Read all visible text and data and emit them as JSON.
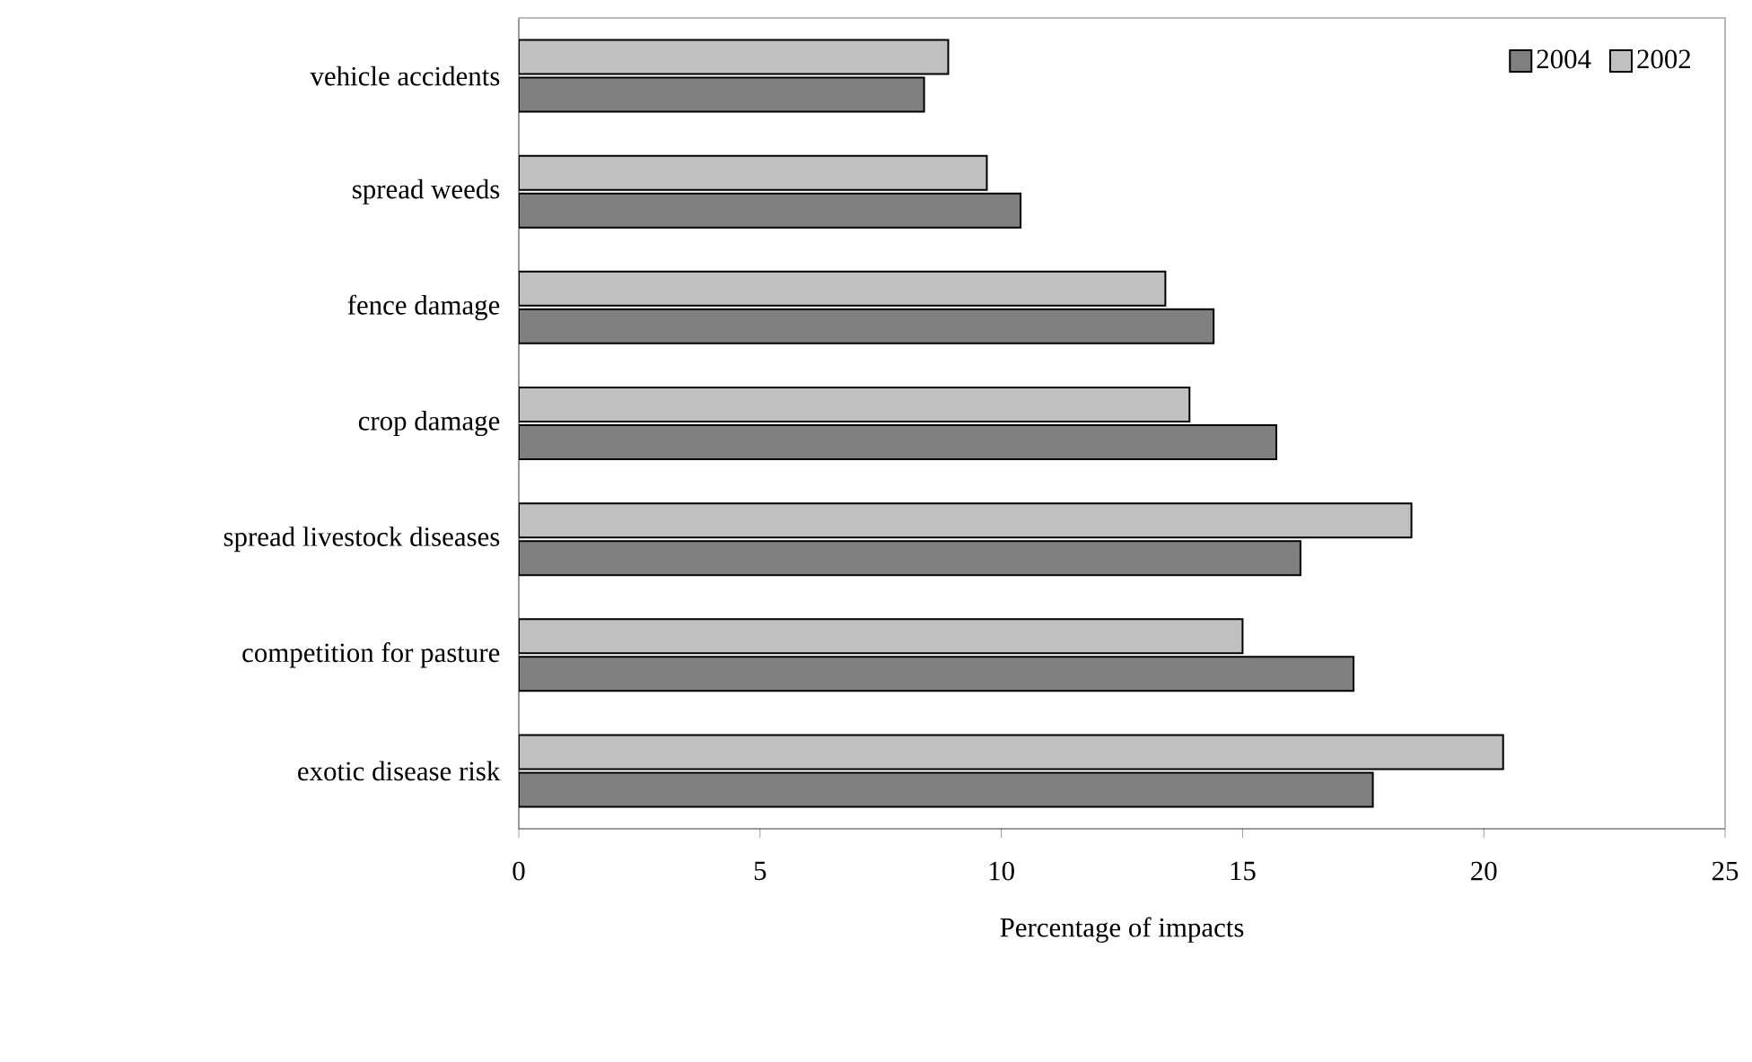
{
  "chart_data": {
    "type": "bar",
    "orientation": "horizontal",
    "xlabel": "Percentage of impacts",
    "categories": [
      "vehicle accidents",
      "spread weeds",
      "fence damage",
      "crop damage",
      "spread livestock diseases",
      "competition for pasture",
      "exotic disease risk"
    ],
    "series": [
      {
        "name": "2004",
        "color": "#808080",
        "values": [
          8.4,
          10.4,
          14.4,
          15.7,
          16.2,
          17.3,
          17.7
        ]
      },
      {
        "name": "2002",
        "color": "#c0c0c0",
        "values": [
          8.9,
          9.7,
          13.4,
          13.9,
          18.5,
          15.0,
          20.4
        ]
      }
    ],
    "xlim": [
      0,
      25
    ],
    "xticks": [
      0,
      5,
      10,
      15,
      20,
      25
    ],
    "legend": "top right"
  }
}
